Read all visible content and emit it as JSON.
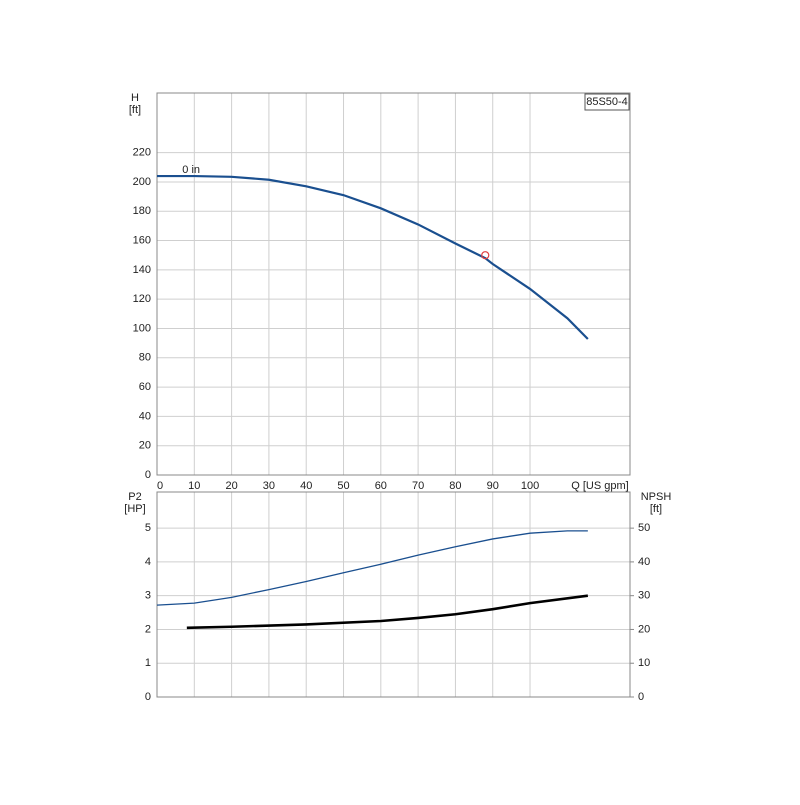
{
  "chart_data": [
    {
      "type": "line",
      "title": "85S50-4",
      "ylabel": [
        "H",
        "[ft]"
      ],
      "xlabel": "Q [US gpm]",
      "xlim": [
        0,
        126.8
      ],
      "xticks": [
        0,
        10,
        20,
        30,
        40,
        50,
        60,
        70,
        80,
        90,
        100
      ],
      "ylim": [
        0,
        260.7
      ],
      "yticks": [
        0,
        20,
        40,
        60,
        80,
        100,
        120,
        140,
        160,
        180,
        200,
        220
      ],
      "grid": true,
      "annotation": "0 in",
      "duty_point": {
        "x": 88,
        "y": 150,
        "color": "#e04040"
      },
      "series": [
        {
          "color": "#1a4f8f",
          "x": [
            0,
            10,
            20,
            30,
            40,
            50,
            60,
            70,
            80,
            88,
            90,
            100,
            110,
            115.5
          ],
          "values": [
            204,
            204,
            203.5,
            201.5,
            197,
            191,
            182,
            171,
            158,
            148,
            144,
            127,
            107,
            92.8
          ]
        }
      ]
    },
    {
      "type": "line",
      "ylabel": [
        "P2",
        "[HP]"
      ],
      "y2label": [
        "NPSH",
        "[ft]"
      ],
      "xlim": [
        0,
        126.8
      ],
      "xticks": [
        0,
        10,
        20,
        30,
        40,
        50,
        60,
        70,
        80,
        90,
        100
      ],
      "ylim": [
        0,
        6.07
      ],
      "yticks": [
        0,
        1,
        2,
        3,
        4,
        5
      ],
      "y2lim": [
        0,
        60.7
      ],
      "y2ticks": [
        0,
        10,
        20,
        30,
        40,
        50
      ],
      "grid": true,
      "series": [
        {
          "color": "#1a4f8f",
          "width": 1.3,
          "x": [
            0,
            10,
            20,
            30,
            40,
            50,
            60,
            70,
            80,
            90,
            100,
            110,
            115.5
          ],
          "values": [
            2.72,
            2.78,
            2.95,
            3.18,
            3.42,
            3.68,
            3.93,
            4.2,
            4.45,
            4.68,
            4.85,
            4.92,
            4.92
          ]
        },
        {
          "color": "#000000",
          "width": 2.6,
          "axis": "y2",
          "x": [
            8,
            20,
            40,
            60,
            70,
            80,
            90,
            100,
            115.5
          ],
          "values": [
            20.5,
            20.8,
            21.5,
            22.5,
            23.4,
            24.5,
            26,
            27.8,
            30
          ]
        }
      ]
    }
  ]
}
